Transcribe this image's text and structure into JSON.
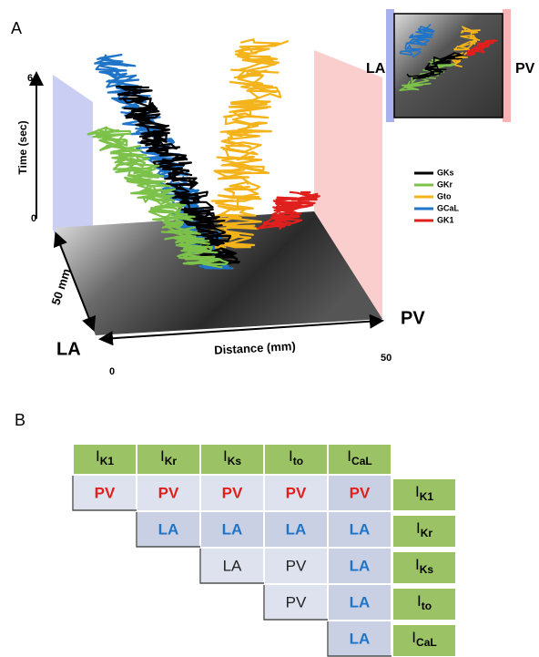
{
  "panel_a": {
    "label": "A",
    "y_axis_label": "Time (sec)",
    "y_tick_top": "6",
    "y_tick_bottom": "0",
    "depth_label": "50 mm",
    "x_axis_label": "Distance (mm)",
    "x_tick_left": "0",
    "x_tick_right": "50",
    "left_region": "LA",
    "right_region": "PV",
    "legend": [
      {
        "name": "GKs",
        "color": "#000000"
      },
      {
        "name": "GKr",
        "color": "#7cc24a"
      },
      {
        "name": "Gto",
        "color": "#f5b31b"
      },
      {
        "name": "GCaL",
        "color": "#1f74c8"
      },
      {
        "name": "GK1",
        "color": "#e0201c"
      }
    ],
    "inset_left": "LA",
    "inset_right": "PV"
  },
  "panel_b": {
    "label": "B",
    "column_headers": [
      {
        "main": "I",
        "sub": "K1"
      },
      {
        "main": "I",
        "sub": "Kr"
      },
      {
        "main": "I",
        "sub": "Ks"
      },
      {
        "main": "I",
        "sub": "to"
      },
      {
        "main": "I",
        "sub": "CaL"
      }
    ],
    "rows": [
      {
        "header": {
          "main": "I",
          "sub": "K1"
        },
        "cells": [
          "PV",
          "PV",
          "PV",
          "PV",
          "PV"
        ]
      },
      {
        "header": {
          "main": "I",
          "sub": "Kr"
        },
        "cells": [
          "LA",
          "LA",
          "LA",
          "LA"
        ]
      },
      {
        "header": {
          "main": "I",
          "sub": "Ks"
        },
        "cells": [
          "LA",
          "PV",
          "LA"
        ]
      },
      {
        "header": {
          "main": "I",
          "sub": "to"
        },
        "cells": [
          "PV",
          "LA"
        ]
      },
      {
        "header": {
          "main": "I",
          "sub": "CaL"
        },
        "cells": [
          "LA"
        ]
      }
    ]
  }
}
